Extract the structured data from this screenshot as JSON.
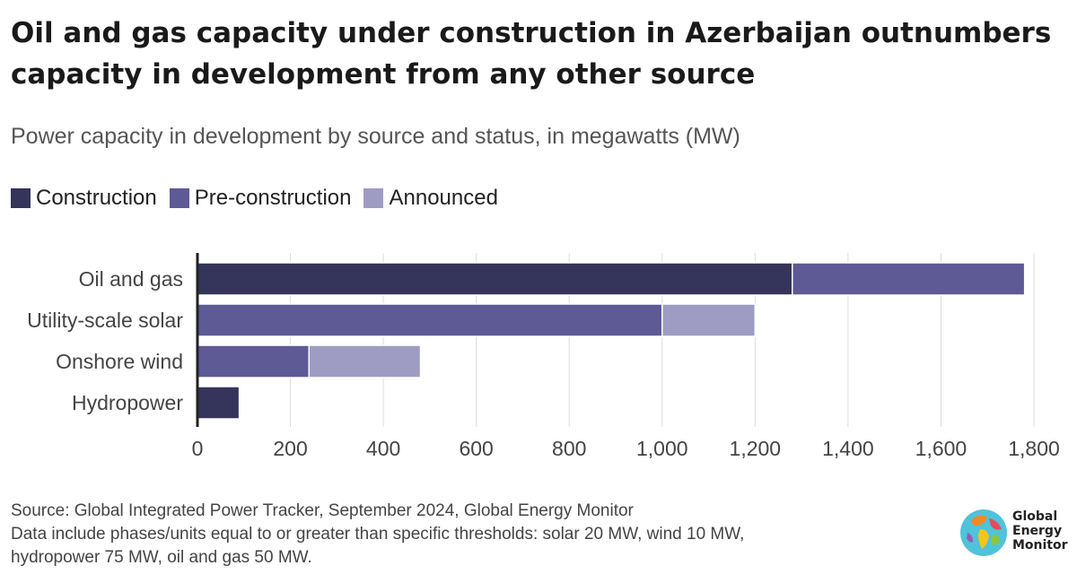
{
  "title": "Oil and gas capacity under construction in Azerbaijan outnumbers capacity in development from any other source",
  "subtitle": "Power capacity in development by source and status, in megawatts (MW)",
  "colors": {
    "construction": "#35345a",
    "preconstruction": "#5e5a96",
    "announced": "#9f9cc3",
    "grid": "#dcdcdc",
    "axis": "#222222"
  },
  "legend": [
    {
      "label": "Construction",
      "color": "#35345a"
    },
    {
      "label": "Pre-construction",
      "color": "#5e5a96"
    },
    {
      "label": "Announced",
      "color": "#9f9cc3"
    }
  ],
  "chart_data": {
    "type": "bar",
    "orientation": "horizontal",
    "stacked": true,
    "categories": [
      "Oil and gas",
      "Utility-scale solar",
      "Onshore wind",
      "Hydropower"
    ],
    "series": [
      {
        "name": "Construction",
        "values": [
          1280,
          0,
          0,
          90
        ]
      },
      {
        "name": "Pre-construction",
        "values": [
          500,
          1000,
          240,
          0
        ]
      },
      {
        "name": "Announced",
        "values": [
          0,
          200,
          240,
          0
        ]
      }
    ],
    "xlim": [
      0,
      1800
    ],
    "xticks": [
      0,
      200,
      400,
      600,
      800,
      1000,
      1200,
      1400,
      1600,
      1800
    ],
    "xtick_labels": [
      "0",
      "200",
      "400",
      "600",
      "800",
      "1,000",
      "1,200",
      "1,400",
      "1,600",
      "1,800"
    ],
    "grid": true,
    "legend_position": "top-left"
  },
  "footer": {
    "source": "Source: Global Integrated Power Tracker, September 2024, Global Energy Monitor",
    "note_line1": "Data include phases/units equal to or greater than specific thresholds: solar 20 MW, wind 10 MW,",
    "note_line2": "hydropower 75 MW, oil and gas 50 MW."
  },
  "logo": {
    "line1": "Global",
    "line2": "Energy",
    "line3": "Monitor",
    "icon": "globe-icon"
  }
}
